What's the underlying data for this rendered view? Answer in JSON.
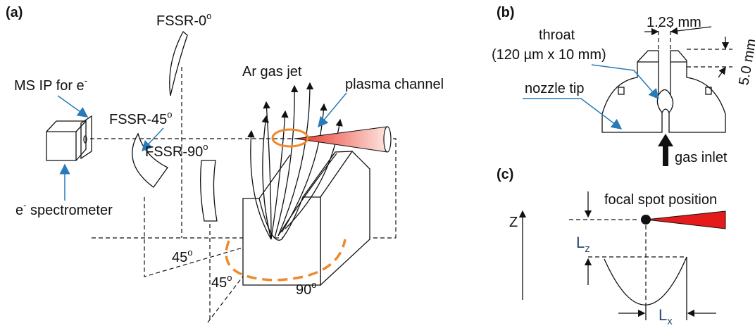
{
  "panel_a": {
    "label": "(a)",
    "fssr_0": {
      "text": "FSSR-0",
      "sup": "o"
    },
    "ms_ip": {
      "text": "MS IP for e",
      "sup": "-"
    },
    "fssr_45": {
      "text": "FSSR-45",
      "sup": "o"
    },
    "ar_gas_jet": "Ar gas jet",
    "plasma_channel": "plasma channel",
    "fssr_90": {
      "text": "FSSR-90",
      "sup": "o"
    },
    "e_spectrometer": {
      "base": "e",
      "sup": "-",
      "rest": " spectrometer"
    },
    "angles": [
      {
        "text": "45",
        "sup": "o"
      },
      {
        "text": "45",
        "sup": "o"
      },
      {
        "text": "90",
        "sup": "o"
      }
    ]
  },
  "panel_b": {
    "label": "(b)",
    "slot_width": "1.23 mm",
    "throat": "throat",
    "throat_size": "(120 µm x 10 mm)",
    "height": "5.0 mm",
    "nozzle_tip": "nozzle tip",
    "gas_inlet": "gas inlet"
  },
  "panel_c": {
    "label": "(c)",
    "focal_spot": "focal spot position",
    "z_axis": "Z",
    "lz": {
      "text": "L",
      "sub": "z"
    },
    "lx": {
      "text": "L",
      "sub": "x"
    }
  }
}
